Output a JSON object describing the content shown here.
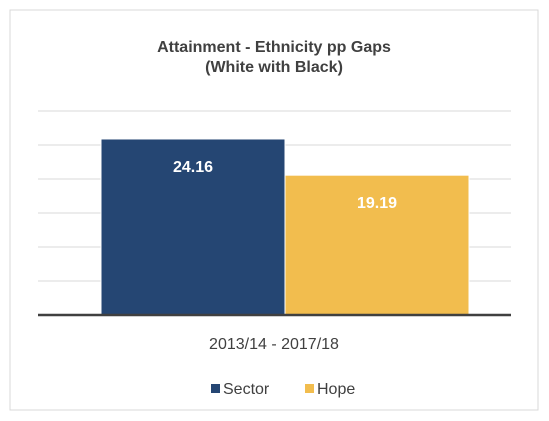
{
  "chart_data": {
    "type": "bar",
    "title_line1": "Attainment - Ethnicity pp Gaps",
    "title_line2": "(White with Black)",
    "category": "2013/14 - 2017/18",
    "series": [
      {
        "name": "Sector",
        "value": 24.16,
        "label": "24.16",
        "color": "#254673"
      },
      {
        "name": "Hope",
        "value": 19.19,
        "label": "19.19",
        "color": "#f2bd4e"
      }
    ],
    "ylim": [
      0,
      28
    ],
    "grid": true,
    "legend_position": "bottom"
  }
}
